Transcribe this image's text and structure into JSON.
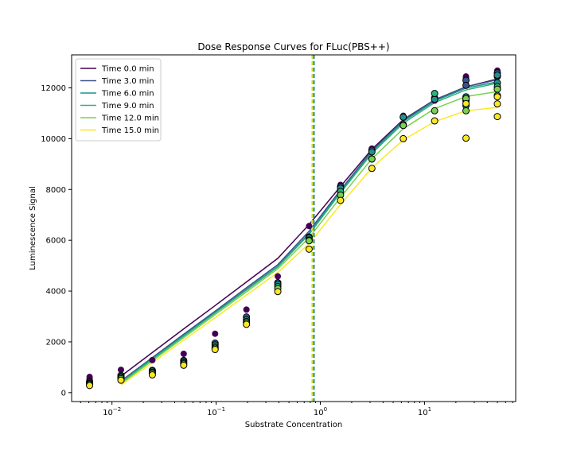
{
  "chart_data": {
    "type": "scatter",
    "title": "Dose Response Curves for FLuc(PBS++)",
    "xlabel": "Substrate Concentration",
    "ylabel": "Luminescence Signal",
    "x_scale": "log",
    "xlim": [
      0.0041,
      75
    ],
    "ylim": [
      -350,
      13300
    ],
    "grid": false,
    "legend_position": "top-left",
    "x_ticks": [
      {
        "value": 0.01,
        "label": "10",
        "exp": "−2"
      },
      {
        "value": 0.1,
        "label": "10",
        "exp": "−1"
      },
      {
        "value": 1,
        "label": "10",
        "exp": "0"
      },
      {
        "value": 10,
        "label": "10",
        "exp": "1"
      }
    ],
    "y_ticks": [
      0,
      2000,
      4000,
      6000,
      8000,
      10000,
      12000
    ],
    "concentrations": [
      0.0061,
      0.0122,
      0.0244,
      0.0488,
      0.0977,
      0.1953,
      0.3906,
      0.78,
      1.5625,
      3.125,
      6.25,
      12.5,
      25,
      50
    ],
    "series": [
      {
        "name": "Time 0.0 min",
        "color": "#440154",
        "curve": [
          650,
          1580,
          2510,
          3430,
          4360,
          5290,
          6620,
          8120,
          9580,
          10750,
          11530,
          12040,
          12350
        ],
        "ec50": 0.87,
        "points": [
          [
            0.0061,
            620
          ],
          [
            0.0061,
            540
          ],
          [
            0.0122,
            900
          ],
          [
            0.0244,
            1280
          ],
          [
            0.0488,
            1530
          ],
          [
            0.0977,
            2320
          ],
          [
            0.1953,
            3270
          ],
          [
            0.3906,
            4580
          ],
          [
            0.78,
            6560
          ],
          [
            1.5625,
            8180
          ],
          [
            3.125,
            9610
          ],
          [
            6.25,
            10900
          ],
          [
            12.5,
            11500
          ],
          [
            25,
            12450
          ],
          [
            25,
            12380
          ],
          [
            50,
            12680
          ],
          [
            50,
            12620
          ]
        ]
      },
      {
        "name": "Time 3.0 min",
        "color": "#3b528b",
        "curve": [
          460,
          1380,
          2300,
          3210,
          4130,
          5040,
          6360,
          7980,
          9520,
          10720,
          11530,
          12040,
          12320
        ],
        "ec50": 0.86,
        "points": [
          [
            0.0061,
            440
          ],
          [
            0.0122,
            680
          ],
          [
            0.0244,
            880
          ],
          [
            0.0488,
            1270
          ],
          [
            0.0977,
            1950
          ],
          [
            0.1953,
            2980
          ],
          [
            0.3906,
            4330
          ],
          [
            0.78,
            6130
          ],
          [
            1.5625,
            8120
          ],
          [
            3.125,
            9550
          ],
          [
            6.25,
            10850
          ],
          [
            12.5,
            11600
          ],
          [
            25,
            12300
          ],
          [
            25,
            12100
          ],
          [
            50,
            12590
          ],
          [
            50,
            12450
          ]
        ]
      },
      {
        "name": "Time 6.0 min",
        "color": "#21918c",
        "curve": [
          420,
          1340,
          2250,
          3160,
          4070,
          4980,
          6280,
          7920,
          9480,
          10680,
          11480,
          11990,
          12240
        ],
        "ec50": 0.87,
        "points": [
          [
            0.0061,
            400
          ],
          [
            0.0122,
            630
          ],
          [
            0.0244,
            850
          ],
          [
            0.0488,
            1220
          ],
          [
            0.0977,
            1880
          ],
          [
            0.1953,
            2870
          ],
          [
            0.3906,
            4270
          ],
          [
            0.78,
            6090
          ],
          [
            1.5625,
            8050
          ],
          [
            3.125,
            9480
          ],
          [
            6.25,
            10850
          ],
          [
            12.5,
            11550
          ],
          [
            25,
            11650
          ],
          [
            25,
            11500
          ],
          [
            50,
            12500
          ],
          [
            50,
            12200
          ]
        ]
      },
      {
        "name": "Time 9.0 min",
        "color": "#2db27d",
        "curve": [
          400,
          1310,
          2220,
          3130,
          4040,
          4950,
          6230,
          7870,
          9420,
          10610,
          11420,
          11920,
          12190
        ],
        "ec50": 0.86,
        "points": [
          [
            0.0061,
            360
          ],
          [
            0.0122,
            600
          ],
          [
            0.0244,
            800
          ],
          [
            0.0488,
            1170
          ],
          [
            0.0977,
            1800
          ],
          [
            0.1953,
            2800
          ],
          [
            0.3906,
            4180
          ],
          [
            0.78,
            6010
          ],
          [
            1.5625,
            7920
          ],
          [
            3.125,
            9200
          ],
          [
            6.25,
            10550
          ],
          [
            12.5,
            11780
          ],
          [
            25,
            11550
          ],
          [
            25,
            11300
          ],
          [
            50,
            12050
          ],
          [
            50,
            11950
          ]
        ]
      },
      {
        "name": "Time 12.0 min",
        "color": "#7ad151",
        "curve": [
          350,
          1260,
          2160,
          3070,
          3970,
          4880,
          6100,
          7690,
          9210,
          10390,
          11180,
          11660,
          11850
        ],
        "ec50": 0.84,
        "points": [
          [
            0.0061,
            320
          ],
          [
            0.0122,
            550
          ],
          [
            0.0244,
            760
          ],
          [
            0.0488,
            1130
          ],
          [
            0.0977,
            1750
          ],
          [
            0.1953,
            2750
          ],
          [
            0.3906,
            4100
          ],
          [
            0.78,
            5980
          ],
          [
            1.5625,
            7780
          ],
          [
            3.125,
            9200
          ],
          [
            6.25,
            10520
          ],
          [
            12.5,
            11100
          ],
          [
            25,
            11580
          ],
          [
            25,
            11100
          ],
          [
            50,
            11950
          ],
          [
            50,
            11700
          ]
        ]
      },
      {
        "name": "Time 15.0 min",
        "color": "#fde725",
        "curve": [
          300,
          1180,
          2070,
          2950,
          3840,
          4730,
          5870,
          7410,
          8850,
          9950,
          10670,
          11100,
          11230
        ],
        "ec50": 0.83,
        "points": [
          [
            0.0061,
            280
          ],
          [
            0.0122,
            490
          ],
          [
            0.0244,
            700
          ],
          [
            0.0488,
            1080
          ],
          [
            0.0977,
            1700
          ],
          [
            0.1953,
            2690
          ],
          [
            0.3906,
            3980
          ],
          [
            0.78,
            5650
          ],
          [
            1.5625,
            7570
          ],
          [
            3.125,
            8830
          ],
          [
            6.25,
            10000
          ],
          [
            12.5,
            10700
          ],
          [
            25,
            11380
          ],
          [
            25,
            10020
          ],
          [
            50,
            11650
          ],
          [
            50,
            11370
          ],
          [
            50,
            10870
          ]
        ]
      }
    ]
  }
}
